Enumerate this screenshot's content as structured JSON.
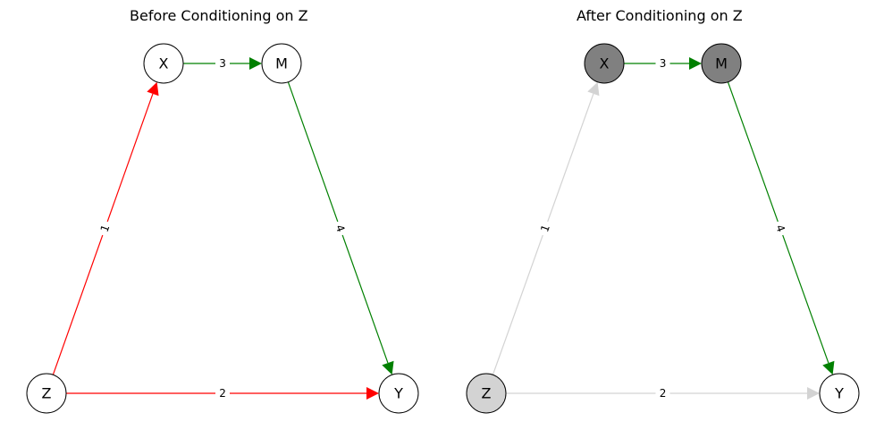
{
  "panels": [
    {
      "title": "Before Conditioning on Z",
      "nodes": [
        {
          "id": "X",
          "label": "X",
          "fill": "#ffffff"
        },
        {
          "id": "M",
          "label": "M",
          "fill": "#ffffff"
        },
        {
          "id": "Z",
          "label": "Z",
          "fill": "#ffffff"
        },
        {
          "id": "Y",
          "label": "Y",
          "fill": "#ffffff"
        }
      ],
      "edges": [
        {
          "from": "Z",
          "to": "X",
          "label": "1",
          "color": "#ff0000"
        },
        {
          "from": "Z",
          "to": "Y",
          "label": "2",
          "color": "#ff0000"
        },
        {
          "from": "X",
          "to": "M",
          "label": "3",
          "color": "#008000"
        },
        {
          "from": "M",
          "to": "Y",
          "label": "4",
          "color": "#008000"
        }
      ]
    },
    {
      "title": "After Conditioning on Z",
      "nodes": [
        {
          "id": "X",
          "label": "X",
          "fill": "#808080"
        },
        {
          "id": "M",
          "label": "M",
          "fill": "#808080"
        },
        {
          "id": "Z",
          "label": "Z",
          "fill": "#d3d3d3"
        },
        {
          "id": "Y",
          "label": "Y",
          "fill": "#ffffff"
        }
      ],
      "edges": [
        {
          "from": "Z",
          "to": "X",
          "label": "1",
          "color": "#d3d3d3"
        },
        {
          "from": "Z",
          "to": "Y",
          "label": "2",
          "color": "#d3d3d3"
        },
        {
          "from": "X",
          "to": "M",
          "label": "3",
          "color": "#008000"
        },
        {
          "from": "M",
          "to": "Y",
          "label": "4",
          "color": "#008000"
        }
      ]
    }
  ]
}
